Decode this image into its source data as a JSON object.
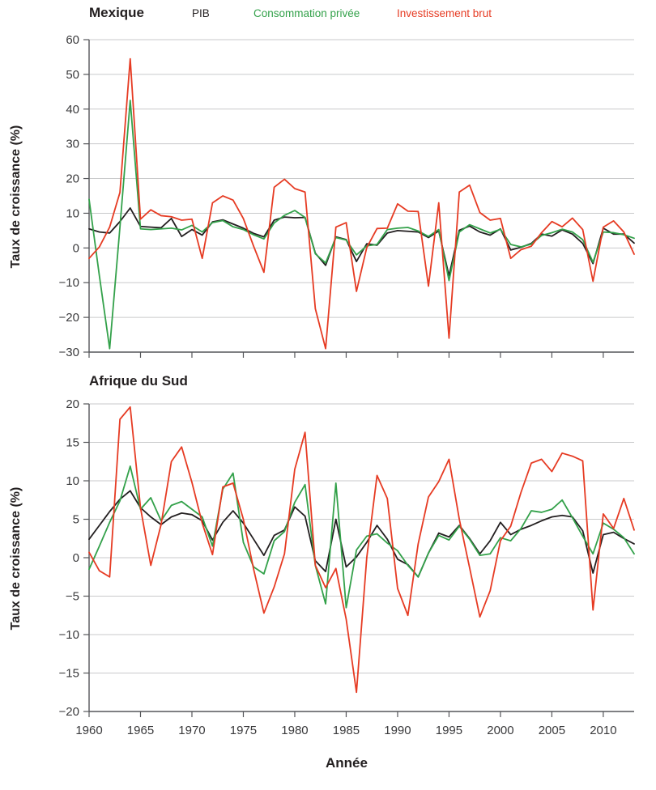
{
  "header": {
    "legend": [
      {
        "label": "PIB",
        "color": "#231f20"
      },
      {
        "label": "Consommation privée",
        "color": "#33a14a"
      },
      {
        "label": "Investissement brut",
        "color": "#e63b23"
      }
    ]
  },
  "x_axis_label": "Année",
  "colors": {
    "grid": "#c9cacb",
    "axis": "#55565a",
    "tick_text": "#3a3a3c",
    "pib": "#231f20",
    "consommation": "#33a14a",
    "investissement": "#e63b23"
  },
  "chart_data": [
    {
      "type": "line",
      "title": "Mexique",
      "ylabel": "Taux de croissance (%)",
      "xlabel": "Année",
      "x_start": 1960,
      "x_end": 2013,
      "ylim": [
        -30,
        60
      ],
      "yticks": [
        60,
        50,
        40,
        30,
        20,
        10,
        0,
        -10,
        -20,
        -30
      ],
      "xticks": [
        1960,
        1965,
        1970,
        1975,
        1980,
        1985,
        1990,
        1995,
        2000,
        2005,
        2010
      ],
      "grid": true,
      "legend_position": "top",
      "series": [
        {
          "name": "PIB",
          "color": "#231f20",
          "values": [
            5.5,
            4.6,
            4.3,
            7.6,
            11.5,
            6.2,
            6.0,
            5.8,
            8.5,
            3.3,
            5.3,
            3.7,
            7.5,
            8.1,
            6.9,
            5.7,
            4.2,
            3.2,
            8.0,
            8.9,
            8.7,
            8.8,
            -1.5,
            -5.0,
            3.2,
            2.4,
            -3.9,
            1.2,
            0.8,
            4.3,
            5.0,
            4.8,
            4.6,
            3.0,
            4.9,
            -8.0,
            5.1,
            6.3,
            4.6,
            3.7,
            5.5,
            -0.6,
            0.2,
            1.3,
            4.0,
            3.4,
            5.2,
            4.0,
            1.3,
            -4.5,
            5.7,
            4.0,
            4.0,
            1.4
          ]
        },
        {
          "name": "Consommation privée",
          "color": "#33a14a",
          "values": [
            14.0,
            -8.0,
            -29.0,
            6.0,
            42.5,
            5.5,
            5.3,
            5.5,
            5.7,
            5.2,
            6.5,
            4.6,
            7.3,
            7.9,
            6.1,
            5.3,
            3.8,
            2.6,
            7.2,
            9.4,
            10.8,
            8.8,
            -1.7,
            -4.3,
            3.0,
            2.3,
            -2.0,
            0.6,
            1.0,
            5.3,
            5.7,
            5.9,
            4.9,
            3.3,
            5.3,
            -9.4,
            4.6,
            6.7,
            5.5,
            4.3,
            5.4,
            1.0,
            0.3,
            1.1,
            3.6,
            4.4,
            5.4,
            4.6,
            2.4,
            -4.1,
            4.6,
            4.4,
            3.8,
            2.8
          ]
        },
        {
          "name": "Investissement brut",
          "color": "#e63b23",
          "values": [
            -3.0,
            0.3,
            6.0,
            16.0,
            54.5,
            8.3,
            11.0,
            9.3,
            9.0,
            8.0,
            8.3,
            -3.0,
            13.0,
            15.0,
            13.8,
            8.5,
            0.5,
            -7.0,
            17.5,
            19.8,
            17.1,
            16.1,
            -17.5,
            -29.0,
            6.0,
            7.3,
            -12.5,
            0.1,
            5.6,
            5.7,
            12.7,
            10.6,
            10.5,
            -11.0,
            13.0,
            -26.0,
            16.1,
            18.1,
            10.2,
            8.0,
            8.5,
            -3.0,
            -0.5,
            0.5,
            4.4,
            7.6,
            6.1,
            8.6,
            5.3,
            -9.6,
            6.0,
            7.8,
            4.6,
            -1.8
          ]
        }
      ]
    },
    {
      "type": "line",
      "title": "Afrique du Sud",
      "ylabel": "Taux de croissance (%)",
      "xlabel": "Année",
      "x_start": 1960,
      "x_end": 2013,
      "ylim": [
        -20,
        20
      ],
      "yticks": [
        20,
        15,
        10,
        5,
        0,
        -5,
        -10,
        -15,
        -20
      ],
      "xticks": [
        1960,
        1965,
        1970,
        1975,
        1980,
        1985,
        1990,
        1995,
        2000,
        2005,
        2010
      ],
      "grid": true,
      "legend_position": "top",
      "series": [
        {
          "name": "PIB",
          "color": "#231f20",
          "values": [
            2.4,
            4.2,
            6.0,
            7.6,
            8.7,
            6.5,
            5.3,
            4.3,
            5.3,
            5.8,
            5.6,
            4.8,
            2.3,
            4.6,
            6.1,
            4.5,
            2.4,
            0.3,
            2.9,
            3.6,
            6.6,
            5.4,
            -0.4,
            -1.8,
            5.0,
            -1.2,
            0.1,
            2.0,
            4.2,
            2.4,
            -0.2,
            -0.9,
            -2.5,
            0.6,
            3.2,
            2.7,
            4.2,
            2.5,
            0.5,
            2.2,
            4.6,
            3.0,
            3.7,
            4.2,
            4.8,
            5.3,
            5.5,
            5.3,
            3.5,
            -2.0,
            3.0,
            3.3,
            2.5,
            1.8
          ]
        },
        {
          "name": "Consommation privée",
          "color": "#33a14a",
          "values": [
            -1.5,
            1.5,
            4.6,
            7.4,
            11.9,
            6.3,
            7.8,
            4.8,
            6.8,
            7.3,
            6.3,
            5.3,
            1.5,
            8.9,
            11.0,
            2.0,
            -1.2,
            -2.1,
            2.2,
            3.4,
            7.2,
            9.5,
            -1.0,
            -6.0,
            9.7,
            -6.5,
            1.0,
            2.8,
            3.1,
            1.9,
            0.9,
            -1.0,
            -2.5,
            0.6,
            2.9,
            2.3,
            4.1,
            2.4,
            0.3,
            0.5,
            2.6,
            2.2,
            3.8,
            6.1,
            5.9,
            6.3,
            7.5,
            5.2,
            2.8,
            0.5,
            4.5,
            3.7,
            2.6,
            0.5
          ]
        },
        {
          "name": "Investissement brut",
          "color": "#e63b23",
          "values": [
            0.7,
            -1.7,
            -2.5,
            18.0,
            19.6,
            6.5,
            -1.0,
            4.3,
            12.5,
            14.4,
            9.8,
            4.5,
            0.4,
            9.2,
            9.7,
            5.0,
            -1.5,
            -7.2,
            -3.8,
            0.5,
            11.5,
            16.3,
            -1.0,
            -3.9,
            -1.4,
            -8.0,
            -17.5,
            0.0,
            10.7,
            7.7,
            -4.0,
            -7.5,
            1.8,
            7.9,
            9.9,
            12.8,
            5.0,
            -1.3,
            -7.7,
            -4.3,
            2.2,
            4.1,
            8.5,
            12.3,
            12.8,
            11.2,
            13.6,
            13.2,
            12.6,
            -6.8,
            5.7,
            3.8,
            7.7,
            3.6
          ]
        }
      ]
    }
  ]
}
